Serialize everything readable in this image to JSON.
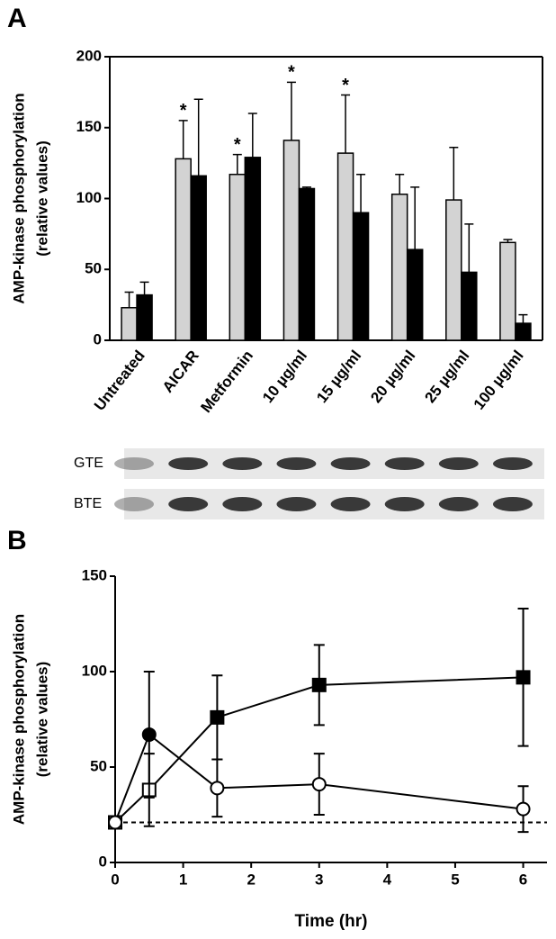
{
  "chart_data": [
    {
      "type": "bar",
      "panel": "A",
      "ylabel": [
        "AMP-kinase phosphorylation",
        "(relative values)"
      ],
      "categories": [
        "Untreated",
        "AICAR",
        "Metformin",
        "10 µg/ml",
        "15 µg/ml",
        "20 µg/ml",
        "25 µg/ml",
        "100 µg/ml"
      ],
      "series": [
        {
          "color": "#d3d3d3",
          "values": [
            23,
            128,
            117,
            141,
            132,
            103,
            99,
            69
          ],
          "errors": [
            11,
            27,
            14,
            41,
            41,
            14,
            37,
            2
          ],
          "significance": [
            null,
            "*",
            "*",
            "*",
            "*",
            null,
            null,
            null
          ]
        },
        {
          "color": "#000000",
          "values": [
            32,
            116,
            129,
            107,
            90,
            64,
            48,
            12
          ],
          "errors": [
            9,
            54,
            31,
            1,
            27,
            44,
            34,
            6
          ]
        }
      ],
      "ylim": [
        0,
        200
      ],
      "yticks": [
        0,
        50,
        100,
        150,
        200
      ],
      "blots": [
        "GTE",
        "BTE"
      ]
    },
    {
      "type": "line",
      "panel": "B",
      "ylabel": [
        "AMP-kinase phosphorylation",
        "(relative values)"
      ],
      "xlabel": "Time (hr)",
      "series": [
        {
          "marker": "square",
          "color": "#000000",
          "x": [
            0,
            0.5,
            1.5,
            3,
            6
          ],
          "values": [
            21,
            38,
            76,
            93,
            97
          ],
          "errors": [
            0,
            19,
            22,
            21,
            36
          ],
          "filled": [
            false,
            false,
            true,
            true,
            true
          ]
        },
        {
          "marker": "circle",
          "color": "#000000",
          "x": [
            0,
            0.5,
            1.5,
            3,
            6
          ],
          "values": [
            21,
            67,
            39,
            41,
            28
          ],
          "errors": [
            0,
            33,
            15,
            16,
            12
          ],
          "filled": [
            false,
            true,
            false,
            false,
            false
          ]
        }
      ],
      "reference_line": 21,
      "xlim": [
        0,
        6.35
      ],
      "xticks": [
        0,
        1,
        2,
        3,
        4,
        5,
        6
      ],
      "ylim": [
        0,
        150
      ],
      "yticks": [
        0,
        50,
        100,
        150
      ]
    }
  ]
}
